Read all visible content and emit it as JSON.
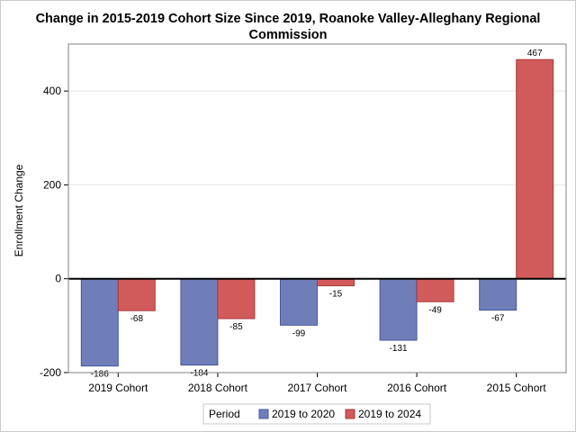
{
  "chart_data": {
    "type": "bar",
    "title": "Change in 2015-2019 Cohort Size Since 2019, Roanoke Valley-Alleghany Regional",
    "title_line2": "Commission",
    "xlabel": "",
    "ylabel": "Enrollment Change",
    "categories": [
      "2019 Cohort",
      "2018 Cohort",
      "2017 Cohort",
      "2016 Cohort",
      "2015 Cohort"
    ],
    "series": [
      {
        "name": "2019 to 2020",
        "values": [
          -186,
          -184,
          -99,
          -131,
          -67
        ],
        "color": "#6f7eb9",
        "stroke": "#4a5899"
      },
      {
        "name": "2019 to 2024",
        "values": [
          -68,
          -85,
          -15,
          -49,
          467
        ],
        "color": "#d15b5b",
        "stroke": "#a83a3a"
      }
    ],
    "ylim": [
      -200,
      500
    ],
    "yticks": [
      -200,
      0,
      200,
      400
    ],
    "grid": true,
    "legend_title": "Period",
    "legend_position": "bottom"
  }
}
